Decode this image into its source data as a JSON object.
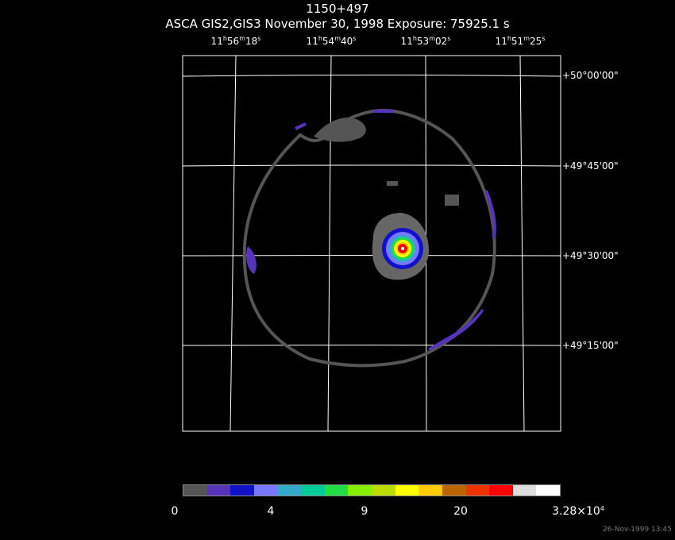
{
  "title": "1150+497",
  "subtitle": "ASCA GIS2,GIS3 November 30, 1998 Exposure: 75925.1 s",
  "ra_labels": [
    {
      "h": "11",
      "m": "56",
      "s": "18"
    },
    {
      "h": "11",
      "m": "54",
      "s": "40"
    },
    {
      "h": "11",
      "m": "53",
      "s": "02"
    },
    {
      "h": "11",
      "m": "51",
      "s": "25"
    }
  ],
  "dec_labels": [
    "+50°00'00\"",
    "+49°45'00\"",
    "+49°30'00\"",
    "+49°15'00\""
  ],
  "colorbar": {
    "colors": [
      "#555555",
      "#5533bb",
      "#1111cc",
      "#7777ff",
      "#33aacc",
      "#00cc99",
      "#22dd44",
      "#88ee00",
      "#bbdd00",
      "#ffff00",
      "#ffcc00",
      "#bb6600",
      "#ee3300",
      "#ff0000",
      "#dddddd",
      "#ffffff"
    ],
    "labels": [
      "0",
      "4",
      "9",
      "20"
    ],
    "max_mantissa": "3.28×10",
    "max_exp": "4"
  },
  "timestamp": "26-Nov-1999 13:45"
}
